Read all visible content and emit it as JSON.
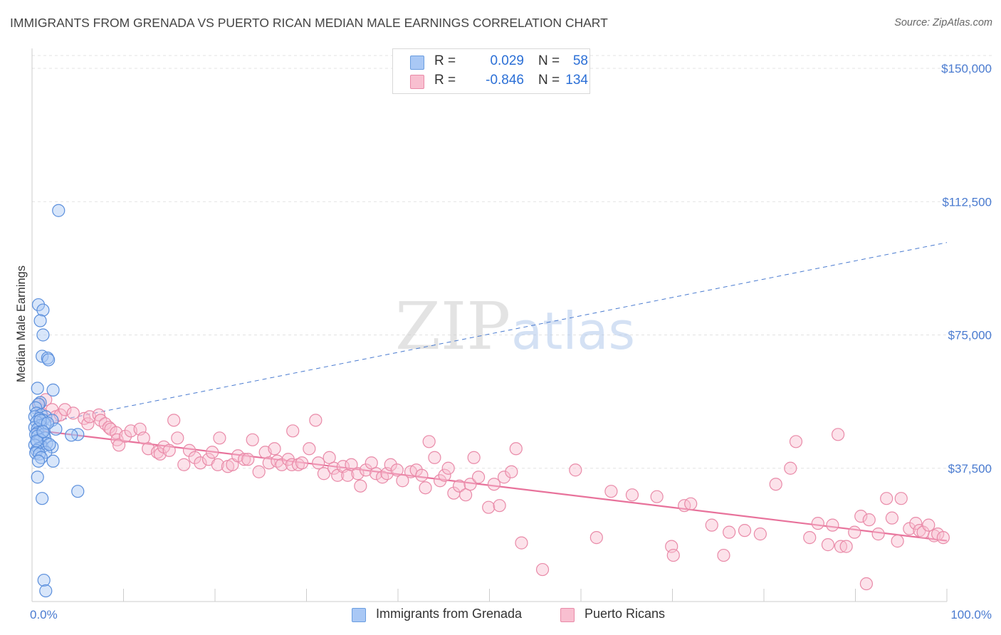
{
  "title": "IMMIGRANTS FROM GRENADA VS PUERTO RICAN MEDIAN MALE EARNINGS CORRELATION CHART",
  "source": "Source: ZipAtlas.com",
  "watermark": {
    "zip": "ZIP",
    "atlas": "atlas"
  },
  "legend": {
    "rows": [
      {
        "r_label": "R =",
        "r_value": "0.029",
        "n_label": "N =",
        "n_value": "58",
        "color": "#a9c8f5",
        "border": "#6a9de0"
      },
      {
        "r_label": "R =",
        "r_value": "-0.846",
        "n_label": "N =",
        "n_value": "134",
        "color": "#f8bfd0",
        "border": "#e98aa8"
      }
    ]
  },
  "bottom_legend": [
    {
      "label": "Immigrants from Grenada",
      "color": "#a9c8f5",
      "border": "#6a9de0"
    },
    {
      "label": "Puerto Ricans",
      "color": "#f8bfd0",
      "border": "#e98aa8"
    }
  ],
  "chart_data": {
    "type": "scatter",
    "xlabel": "",
    "ylabel": "Median Male Earnings",
    "xlim": [
      0,
      100
    ],
    "ylim": [
      0,
      155000
    ],
    "x_tick_labels": [
      "0.0%",
      "100.0%"
    ],
    "y_ticks": [
      37500,
      75000,
      112500,
      150000
    ],
    "y_tick_labels": [
      "$37,500",
      "$75,000",
      "$112,500",
      "$150,000"
    ],
    "grid": true,
    "series": [
      {
        "name": "Immigrants from Grenada",
        "color": "#a9c8f5",
        "stroke": "#5b8fdc",
        "trend": {
          "x": [
            0,
            100
          ],
          "y": [
            49500,
            101000
          ],
          "dashed": true,
          "color": "#4a7bd0"
        },
        "points": [
          [
            2.9,
            110000
          ],
          [
            0.7,
            83500
          ],
          [
            1.2,
            82000
          ],
          [
            0.9,
            79000
          ],
          [
            1.2,
            75000
          ],
          [
            1.1,
            69000
          ],
          [
            1.7,
            68500
          ],
          [
            1.8,
            68000
          ],
          [
            0.6,
            60000
          ],
          [
            2.3,
            59500
          ],
          [
            0.9,
            56000
          ],
          [
            0.7,
            55500
          ],
          [
            0.4,
            54500
          ],
          [
            0.5,
            53000
          ],
          [
            1.0,
            52500
          ],
          [
            1.5,
            52000
          ],
          [
            0.3,
            52000
          ],
          [
            0.8,
            51500
          ],
          [
            1.2,
            51000
          ],
          [
            2.2,
            51000
          ],
          [
            0.5,
            50500
          ],
          [
            1.4,
            50000
          ],
          [
            0.9,
            49500
          ],
          [
            0.3,
            49000
          ],
          [
            0.6,
            48500
          ],
          [
            2.6,
            48500
          ],
          [
            1.1,
            48000
          ],
          [
            0.6,
            47500
          ],
          [
            0.4,
            47000
          ],
          [
            1.3,
            47000
          ],
          [
            5.0,
            47000
          ],
          [
            4.3,
            46800
          ],
          [
            0.6,
            46500
          ],
          [
            1.4,
            46000
          ],
          [
            0.9,
            45500
          ],
          [
            0.6,
            45000
          ],
          [
            1.6,
            44500
          ],
          [
            0.3,
            44000
          ],
          [
            1.1,
            43500
          ],
          [
            2.2,
            43500
          ],
          [
            0.7,
            43000
          ],
          [
            0.5,
            42500
          ],
          [
            1.5,
            42000
          ],
          [
            0.4,
            41800
          ],
          [
            0.8,
            41500
          ],
          [
            1.0,
            40500
          ],
          [
            2.3,
            39500
          ],
          [
            0.7,
            39500
          ],
          [
            0.6,
            35000
          ],
          [
            5.0,
            31000
          ],
          [
            1.1,
            29000
          ],
          [
            1.3,
            6000
          ],
          [
            1.5,
            3000
          ],
          [
            0.9,
            51000
          ],
          [
            1.7,
            50200
          ],
          [
            0.5,
            45200
          ],
          [
            1.2,
            47800
          ],
          [
            1.9,
            44200
          ]
        ]
      },
      {
        "name": "Puerto Ricans",
        "color": "#f8bfd0",
        "stroke": "#e98aa8",
        "trend": {
          "x": [
            0,
            100
          ],
          "y": [
            48300,
            17100
          ],
          "dashed": false,
          "color": "#e8729b"
        },
        "points": [
          [
            0.8,
            55500
          ],
          [
            1.5,
            56800
          ],
          [
            2.2,
            54000
          ],
          [
            1.0,
            53000
          ],
          [
            2.6,
            52000
          ],
          [
            3.1,
            52500
          ],
          [
            3.6,
            54000
          ],
          [
            4.5,
            53000
          ],
          [
            5.7,
            51500
          ],
          [
            6.1,
            50000
          ],
          [
            6.3,
            52000
          ],
          [
            7.3,
            52500
          ],
          [
            7.5,
            51000
          ],
          [
            8.0,
            50000
          ],
          [
            8.4,
            49000
          ],
          [
            8.6,
            48500
          ],
          [
            9.2,
            47500
          ],
          [
            9.3,
            45500
          ],
          [
            9.5,
            44000
          ],
          [
            10.2,
            46500
          ],
          [
            10.8,
            48000
          ],
          [
            11.8,
            48500
          ],
          [
            12.2,
            46000
          ],
          [
            12.7,
            43000
          ],
          [
            13.7,
            42000
          ],
          [
            14.0,
            41500
          ],
          [
            14.4,
            43500
          ],
          [
            15.0,
            42500
          ],
          [
            15.5,
            51000
          ],
          [
            15.9,
            46000
          ],
          [
            16.6,
            38500
          ],
          [
            17.2,
            42500
          ],
          [
            17.8,
            40500
          ],
          [
            18.4,
            39000
          ],
          [
            19.3,
            40000
          ],
          [
            19.7,
            42000
          ],
          [
            20.3,
            38500
          ],
          [
            20.5,
            46000
          ],
          [
            21.4,
            38000
          ],
          [
            21.9,
            38500
          ],
          [
            22.5,
            41000
          ],
          [
            23.2,
            40000
          ],
          [
            23.6,
            40000
          ],
          [
            24.1,
            45500
          ],
          [
            24.8,
            36500
          ],
          [
            25.5,
            42000
          ],
          [
            25.9,
            39000
          ],
          [
            26.5,
            43000
          ],
          [
            26.8,
            39500
          ],
          [
            27.3,
            38500
          ],
          [
            28.0,
            40000
          ],
          [
            28.4,
            38500
          ],
          [
            28.5,
            48000
          ],
          [
            29.1,
            38500
          ],
          [
            29.5,
            39000
          ],
          [
            30.3,
            43000
          ],
          [
            31.0,
            51000
          ],
          [
            31.3,
            39000
          ],
          [
            31.9,
            36000
          ],
          [
            32.5,
            40500
          ],
          [
            33.0,
            37500
          ],
          [
            33.4,
            35500
          ],
          [
            34.0,
            38000
          ],
          [
            34.5,
            35500
          ],
          [
            34.9,
            38500
          ],
          [
            35.6,
            36000
          ],
          [
            35.9,
            32500
          ],
          [
            36.5,
            37000
          ],
          [
            37.1,
            39000
          ],
          [
            37.6,
            36000
          ],
          [
            38.3,
            35000
          ],
          [
            38.8,
            36000
          ],
          [
            39.2,
            38500
          ],
          [
            39.9,
            37000
          ],
          [
            40.5,
            34000
          ],
          [
            41.4,
            36500
          ],
          [
            42.0,
            37000
          ],
          [
            42.6,
            35500
          ],
          [
            43.0,
            32000
          ],
          [
            43.4,
            45000
          ],
          [
            44.0,
            40500
          ],
          [
            44.6,
            34000
          ],
          [
            45.1,
            35500
          ],
          [
            45.5,
            37500
          ],
          [
            46.1,
            30500
          ],
          [
            46.7,
            32500
          ],
          [
            47.4,
            30000
          ],
          [
            47.9,
            33000
          ],
          [
            48.3,
            40500
          ],
          [
            48.8,
            35000
          ],
          [
            49.9,
            26500
          ],
          [
            50.5,
            33000
          ],
          [
            51.1,
            27000
          ],
          [
            51.6,
            35000
          ],
          [
            52.4,
            36500
          ],
          [
            52.9,
            43000
          ],
          [
            53.5,
            16500
          ],
          [
            55.8,
            9000
          ],
          [
            59.4,
            37000
          ],
          [
            61.7,
            18000
          ],
          [
            63.3,
            31000
          ],
          [
            65.6,
            30000
          ],
          [
            68.3,
            29500
          ],
          [
            69.9,
            15500
          ],
          [
            70.1,
            13000
          ],
          [
            71.3,
            27000
          ],
          [
            72.0,
            27500
          ],
          [
            74.3,
            21500
          ],
          [
            75.6,
            13000
          ],
          [
            76.2,
            19500
          ],
          [
            77.9,
            20000
          ],
          [
            79.6,
            19000
          ],
          [
            81.3,
            33000
          ],
          [
            82.9,
            37500
          ],
          [
            83.5,
            45000
          ],
          [
            85.0,
            18000
          ],
          [
            85.9,
            22000
          ],
          [
            87.0,
            16000
          ],
          [
            87.5,
            21500
          ],
          [
            88.1,
            47000
          ],
          [
            88.4,
            15500
          ],
          [
            89.0,
            15500
          ],
          [
            89.9,
            19500
          ],
          [
            90.6,
            24000
          ],
          [
            91.5,
            23000
          ],
          [
            92.5,
            19000
          ],
          [
            93.4,
            29000
          ],
          [
            94.0,
            23500
          ],
          [
            94.6,
            17000
          ],
          [
            95.0,
            29000
          ],
          [
            95.9,
            20500
          ],
          [
            96.6,
            22000
          ],
          [
            97.0,
            20000
          ],
          [
            97.4,
            19500
          ],
          [
            98.0,
            21500
          ],
          [
            98.6,
            18500
          ],
          [
            99.0,
            19000
          ],
          [
            99.6,
            18000
          ],
          [
            91.2,
            5000
          ]
        ]
      }
    ]
  }
}
